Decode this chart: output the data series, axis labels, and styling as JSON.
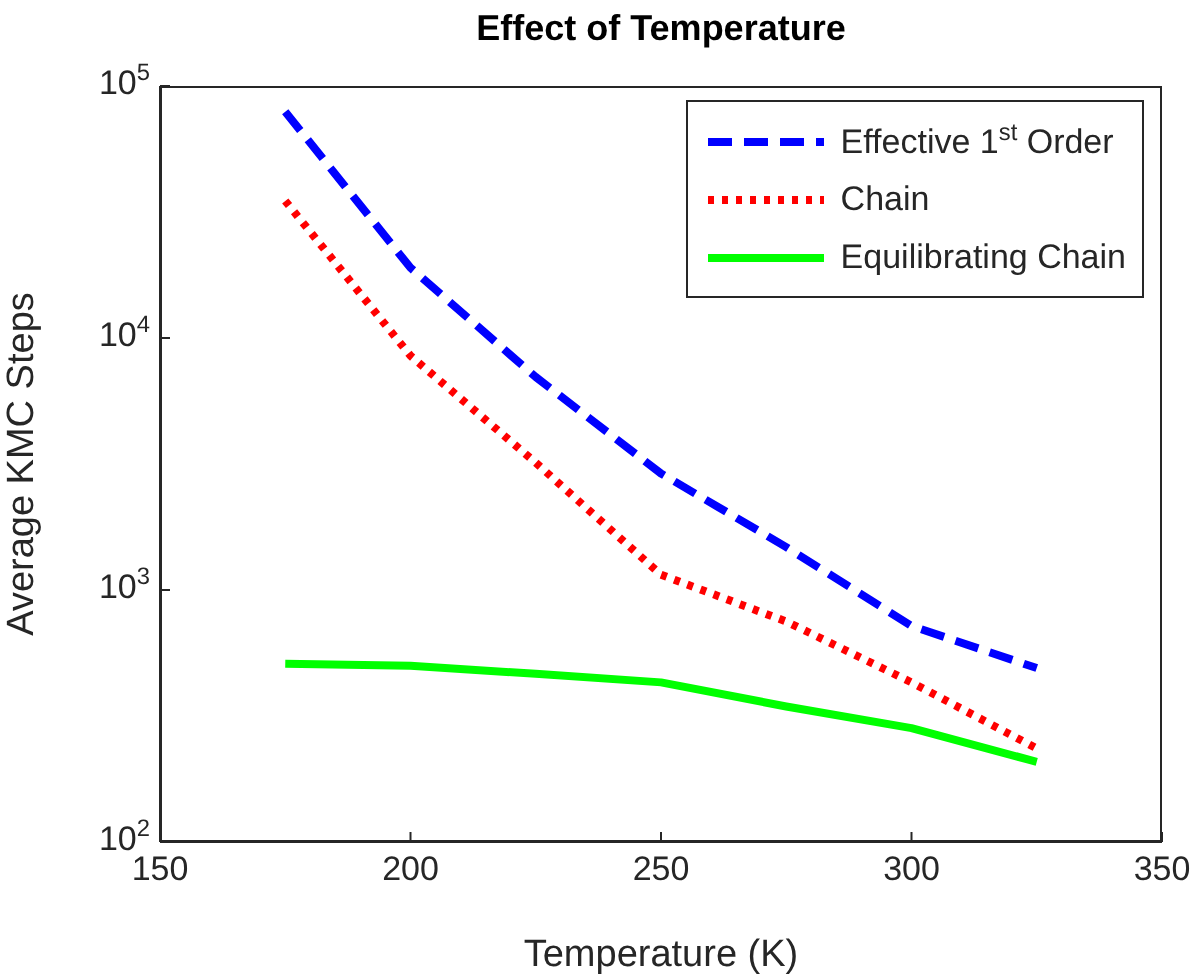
{
  "chart_data": {
    "type": "line",
    "title": "Effect of Temperature",
    "xlabel": "Temperature (K)",
    "ylabel": "Average KMC Steps",
    "x": [
      175,
      200,
      225,
      250,
      275,
      300,
      325
    ],
    "series": [
      {
        "name": "Effective 1$^{st}$ Order",
        "color": "#0000ff",
        "line_style": "dashed",
        "values": [
          79000,
          19000,
          7000,
          2900,
          1480,
          720,
          490
        ]
      },
      {
        "name": "Chain",
        "color": "#ff0000",
        "line_style": "dotted",
        "values": [
          35000,
          8500,
          3200,
          1150,
          750,
          430,
          235
        ]
      },
      {
        "name": "Equilibrating Chain",
        "color": "#00ff00",
        "line_style": "solid",
        "values": [
          510,
          500,
          465,
          430,
          345,
          283,
          208
        ]
      }
    ],
    "xlim": [
      150,
      350
    ],
    "xticks": [
      150,
      200,
      250,
      300,
      350
    ],
    "ylim": [
      100,
      100000
    ],
    "yticks": [
      {
        "value": 100,
        "label": "10$^{2}$"
      },
      {
        "value": 1000,
        "label": "10$^{3}$"
      },
      {
        "value": 10000,
        "label": "10$^{4}$"
      },
      {
        "value": 100000,
        "label": "10$^{5}$"
      }
    ],
    "log": "y",
    "grid": false,
    "legend": "top right",
    "marker": "none"
  }
}
